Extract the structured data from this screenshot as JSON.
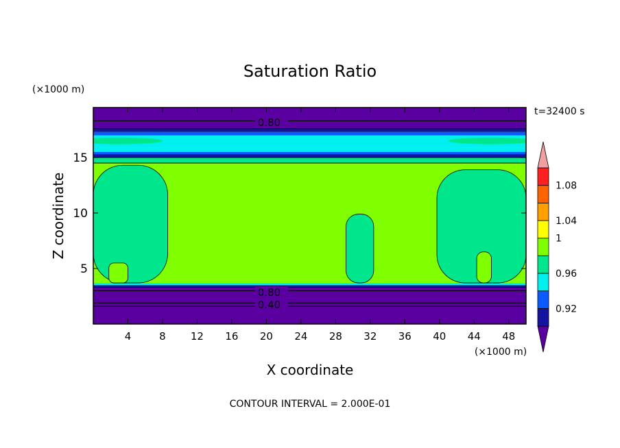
{
  "chart_data": {
    "type": "heatmap",
    "title": "Saturation Ratio",
    "time_label": "t=32400 s",
    "xlabel": "X coordinate",
    "ylabel": "Z coordinate",
    "x_units": "(×1000 m)",
    "y_units": "(×1000 m)",
    "xlim": [
      0,
      50
    ],
    "ylim": [
      0,
      19.5
    ],
    "x_ticks": [
      {
        "value": 4,
        "label": "4"
      },
      {
        "value": 8,
        "label": "8"
      },
      {
        "value": 12,
        "label": "12"
      },
      {
        "value": 16,
        "label": "16"
      },
      {
        "value": 20,
        "label": "20"
      },
      {
        "value": 24,
        "label": "24"
      },
      {
        "value": 28,
        "label": "28"
      },
      {
        "value": 32,
        "label": "32"
      },
      {
        "value": 36,
        "label": "36"
      },
      {
        "value": 40,
        "label": "40"
      },
      {
        "value": 44,
        "label": "44"
      },
      {
        "value": 48,
        "label": "48"
      }
    ],
    "y_ticks": [
      {
        "value": 5,
        "label": "5"
      },
      {
        "value": 10,
        "label": "10"
      },
      {
        "value": 15,
        "label": "15"
      }
    ],
    "contour_interval_text": "CONTOUR INTERVAL = 2.000E-01",
    "contour_labels": [
      {
        "text": "0.80",
        "x": 19,
        "z": 18.2
      },
      {
        "text": "0.80",
        "x": 19,
        "z": 2.9
      },
      {
        "text": "0.40",
        "x": 19,
        "z": 1.8
      }
    ],
    "colorbar": {
      "levels": [
        {
          "color": "#5a00a0"
        },
        {
          "color": "#1414a0"
        },
        {
          "color": "#0a5aff"
        },
        {
          "color": "#00f0f0"
        },
        {
          "color": "#00e68c"
        },
        {
          "color": "#80ff00"
        },
        {
          "color": "#ffff00"
        },
        {
          "color": "#ffa000"
        },
        {
          "color": "#ff6400"
        },
        {
          "color": "#ff2020"
        },
        {
          "color": "#f0a0a0"
        }
      ],
      "tick_labels": [
        {
          "after_level": 1,
          "text": "0.92"
        },
        {
          "after_level": 3,
          "text": "0.96"
        },
        {
          "after_level": 5,
          "text": "1"
        },
        {
          "after_level": 6,
          "text": "1.04"
        },
        {
          "after_level": 8,
          "text": "1.08"
        }
      ]
    },
    "regions": {
      "base_color": "#80ff00",
      "bands": [
        {
          "z0": 18.3,
          "z1": 19.5,
          "color": "#5a00a0"
        },
        {
          "z0": 17.6,
          "z1": 18.3,
          "color": "#5a00a0"
        },
        {
          "z0": 17.3,
          "z1": 17.6,
          "color": "#1414a0"
        },
        {
          "z0": 17.0,
          "z1": 17.3,
          "color": "#0a5aff"
        },
        {
          "z0": 15.9,
          "z1": 17.0,
          "color": "#00f0f0"
        },
        {
          "z0": 15.5,
          "z1": 15.9,
          "color": "#00f0f0"
        },
        {
          "z0": 15.3,
          "z1": 15.5,
          "color": "#0a5aff"
        },
        {
          "z0": 15.0,
          "z1": 15.3,
          "color": "#1414a0"
        },
        {
          "z0": 14.5,
          "z1": 15.0,
          "color": "#00e68c"
        },
        {
          "z0": 0.0,
          "z1": 3.3,
          "color": "#5a00a0"
        },
        {
          "z0": 3.3,
          "z1": 3.5,
          "color": "#1414a0"
        },
        {
          "z0": 3.5,
          "z1": 3.7,
          "color": "#00f0f0"
        }
      ],
      "lenses": [
        {
          "cx": 3,
          "cz": 16.5,
          "rx": 5,
          "rz": 0.3,
          "color": "#00e68c"
        },
        {
          "cx": 46,
          "cz": 16.5,
          "rx": 5,
          "rz": 0.3,
          "color": "#00e68c"
        }
      ],
      "blobs": [
        {
          "x0": 0,
          "x1": 8.6,
          "z0": 3.7,
          "z1": 14.3,
          "color": "#00e68c"
        },
        {
          "x0": 39.7,
          "x1": 50,
          "z0": 3.7,
          "z1": 13.9,
          "color": "#00e68c"
        },
        {
          "x0": 29.2,
          "x1": 32.4,
          "z0": 3.7,
          "z1": 9.9,
          "color": "#00e68c"
        },
        {
          "x0": 1.8,
          "x1": 4.0,
          "z0": 3.7,
          "z1": 5.5,
          "color": "#80ff00"
        },
        {
          "x0": 44.3,
          "x1": 46.0,
          "z0": 3.7,
          "z1": 6.5,
          "color": "#80ff00"
        }
      ]
    },
    "contour_lines_z": [
      18.3,
      17.6,
      15.0,
      14.5,
      3.3,
      3.0,
      1.9,
      1.6
    ]
  }
}
